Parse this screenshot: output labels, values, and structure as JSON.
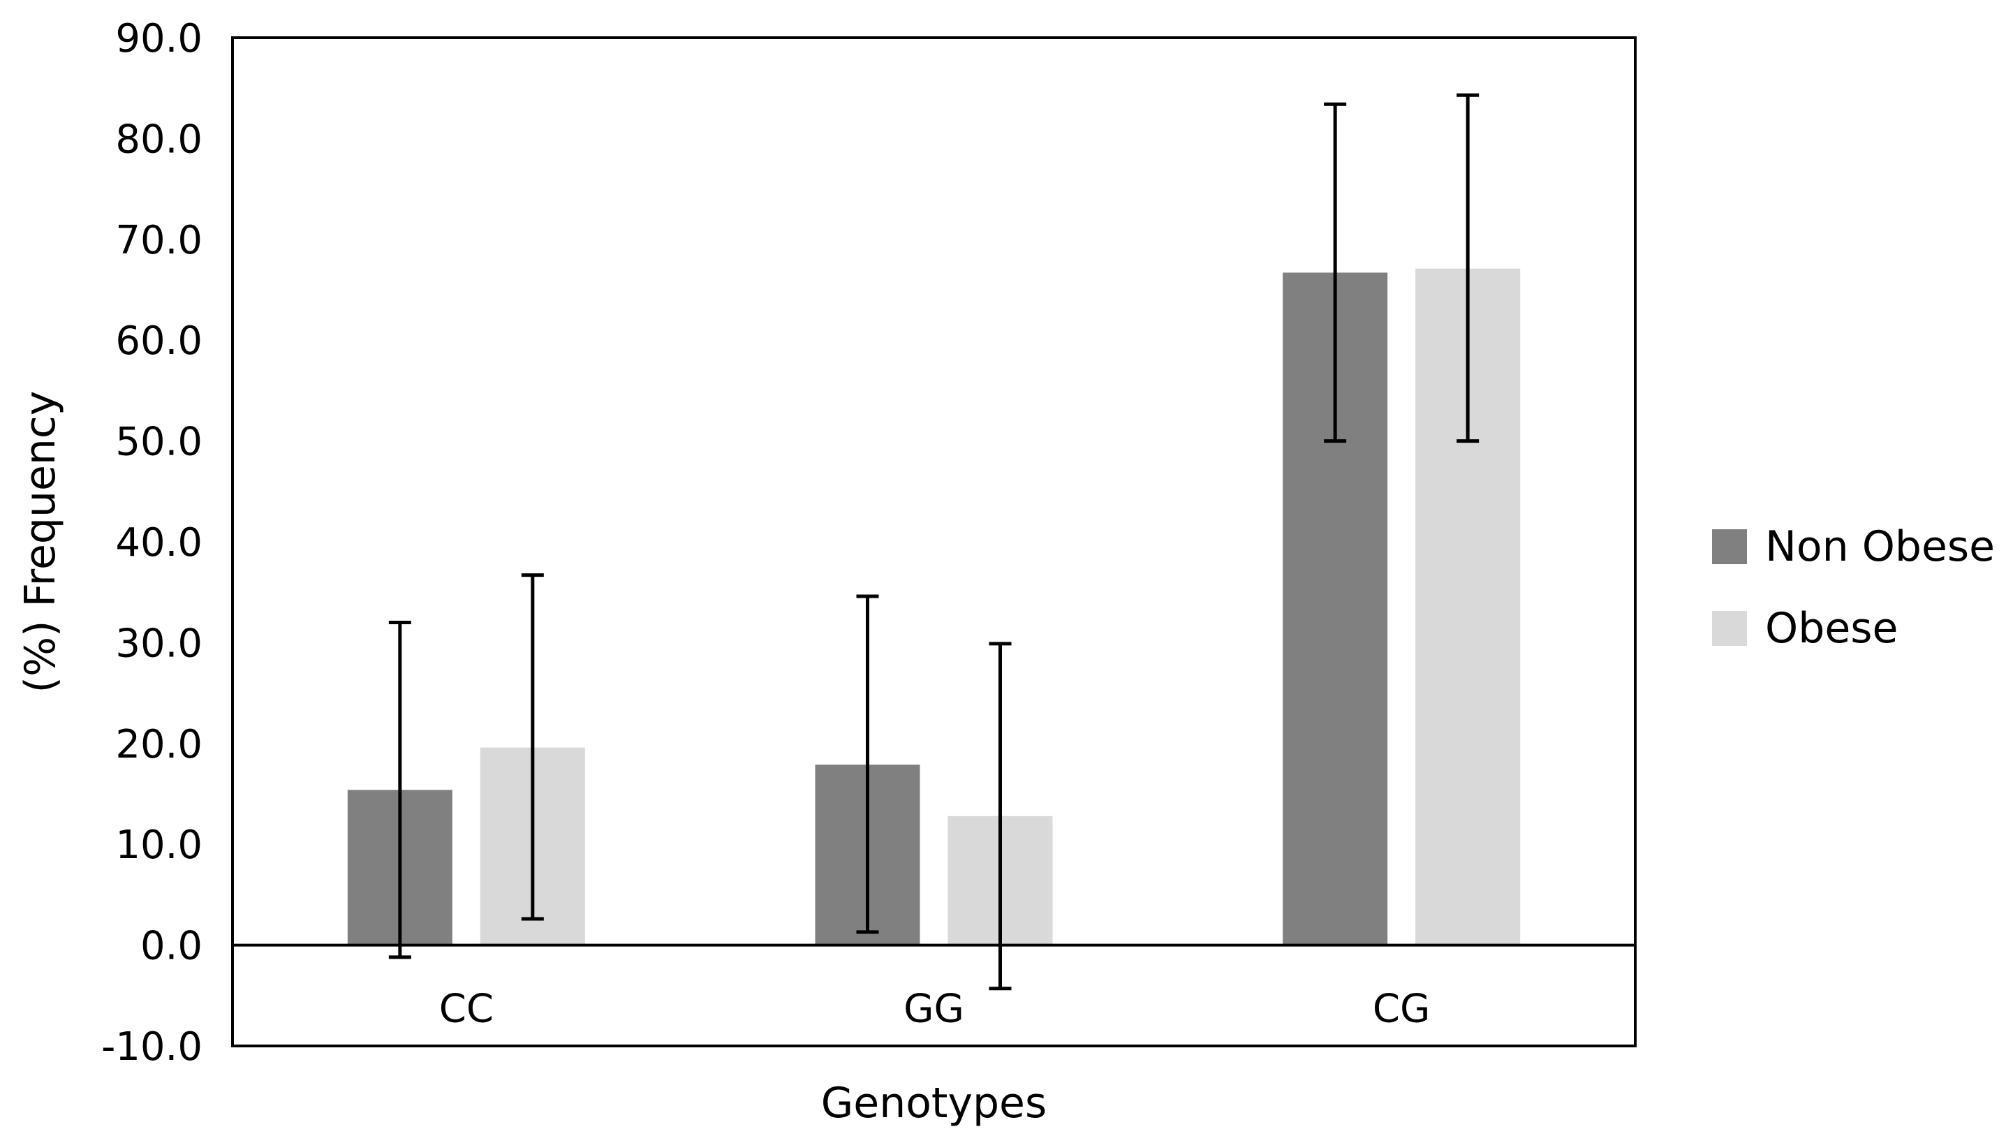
{
  "chart_data": {
    "type": "bar",
    "title": "",
    "xlabel": "Genotypes",
    "ylabel": "(%)  Frequency",
    "categories": [
      "CC",
      "GG",
      "CG"
    ],
    "ylim": [
      -10,
      90
    ],
    "yticks": [
      "90.0",
      "80.0",
      "70.0",
      "60.0",
      "50.0",
      "40.0",
      "30.0",
      "20.0",
      "10.0",
      "0.0",
      "-10.0"
    ],
    "legend_position": "right",
    "grid": false,
    "series": [
      {
        "name": "Non Obese",
        "color": "#808080",
        "values": [
          15.4,
          17.9,
          66.7
        ],
        "error_low": [
          -1.2,
          1.3,
          50.0
        ],
        "error_high": [
          32.0,
          34.6,
          83.4
        ]
      },
      {
        "name": "Obese",
        "color": "#d9d9d9",
        "values": [
          19.6,
          12.8,
          67.1
        ],
        "error_low": [
          2.6,
          -4.3,
          50.0
        ],
        "error_high": [
          36.7,
          29.9,
          84.3
        ]
      }
    ]
  }
}
